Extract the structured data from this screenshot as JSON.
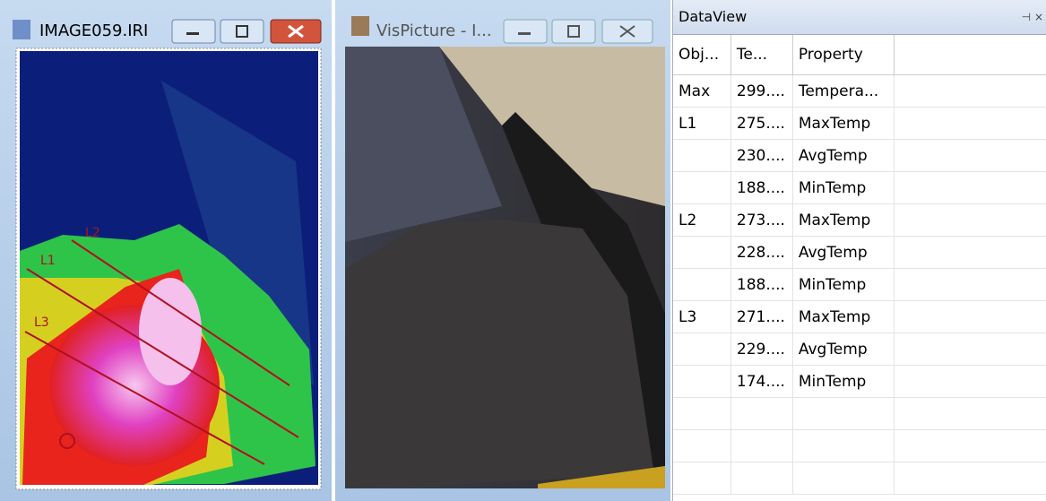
{
  "windows": [
    {
      "title": "IMAGE059.IRI"
    },
    {
      "title": "VisPicture - I..."
    }
  ],
  "thermal_labels": [
    "L2",
    "L1",
    "L3"
  ],
  "dataview": {
    "title": "DataView",
    "columns": [
      "Obj...",
      "Te...",
      "Property"
    ],
    "rows": [
      [
        "Max",
        "299....",
        "Tempera..."
      ],
      [
        "L1",
        "275....",
        "MaxTemp"
      ],
      [
        null,
        "230....",
        "AvgTemp"
      ],
      [
        null,
        "188....",
        "MinTemp"
      ],
      [
        "L2",
        "273....",
        "MaxTemp"
      ],
      [
        null,
        "228....",
        "AvgTemp"
      ],
      [
        null,
        "188....",
        "MinTemp"
      ],
      [
        "L3",
        "271....",
        "MaxTemp"
      ],
      [
        null,
        "229....",
        "AvgTemp"
      ],
      [
        null,
        "174....",
        "MinTemp"
      ]
    ]
  }
}
